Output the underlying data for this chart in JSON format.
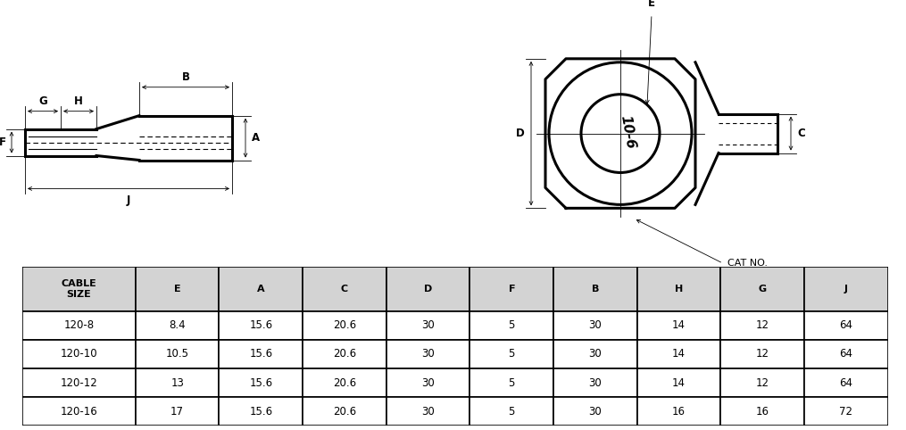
{
  "table_header_display": [
    "CABLE\nSIZE",
    "E",
    "A",
    "C",
    "D",
    "F",
    "B",
    "H",
    "G",
    "J"
  ],
  "table_rows": [
    [
      "120-8",
      "8.4",
      "15.6",
      "20.6",
      "30",
      "5",
      "30",
      "14",
      "12",
      "64"
    ],
    [
      "120-10",
      "10.5",
      "15.6",
      "20.6",
      "30",
      "5",
      "30",
      "14",
      "12",
      "64"
    ],
    [
      "120-12",
      "13",
      "15.6",
      "20.6",
      "30",
      "5",
      "30",
      "14",
      "12",
      "64"
    ],
    [
      "120-16",
      "17",
      "15.6",
      "20.6",
      "30",
      "5",
      "30",
      "16",
      "16",
      "72"
    ]
  ],
  "header_bg": "#d3d3d3",
  "row_bg": "#ffffff",
  "border_color": "#000000",
  "text_color": "#000000",
  "cat_label": "CAT NO.",
  "cat_no": "10-6",
  "bg_color": "#ffffff",
  "lw_thick": 2.2,
  "lw_thin": 0.8,
  "lw_dim": 0.6
}
